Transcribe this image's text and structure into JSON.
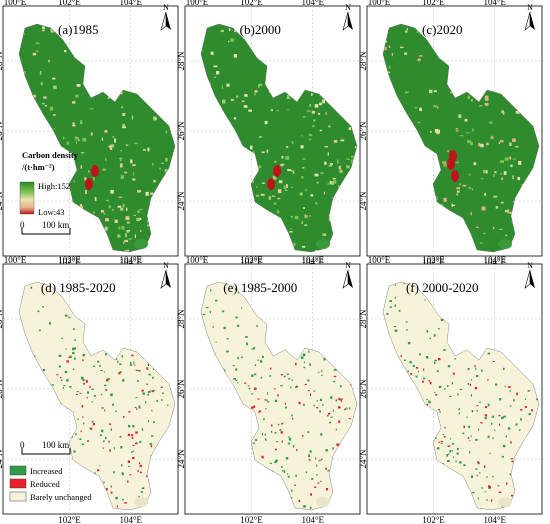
{
  "figure": {
    "panels": [
      {
        "id": "a",
        "title": "(a)1985",
        "kind": "density",
        "seed": 11
      },
      {
        "id": "b",
        "title": "(b)2000",
        "kind": "density",
        "seed": 23
      },
      {
        "id": "c",
        "title": "(c)2020",
        "kind": "density",
        "seed": 37
      },
      {
        "id": "d",
        "title": "(d)  1985-2020",
        "kind": "change",
        "seed": 41
      },
      {
        "id": "e",
        "title": "(e)  1985-2000",
        "kind": "change",
        "seed": 53
      },
      {
        "id": "f",
        "title": "(f)  2000-2020",
        "kind": "change",
        "seed": 67
      }
    ],
    "longitude_ticks_top": [
      "100°E",
      "102°E",
      "104°E"
    ],
    "longitude_ticks_bottom": [
      "102°E",
      "104°E"
    ],
    "latitude_ticks": [
      "28°N",
      "26°N",
      "24°N"
    ],
    "north_arrow_label": "N",
    "density_legend": {
      "title_line1": "Carbon density",
      "title_line2": "/(t·hm⁻²)",
      "high_label": "High:152",
      "low_label": "Low:43",
      "high": 152,
      "low": 43,
      "colors": [
        "#1f8a1f",
        "#7dc14f",
        "#e7e3b0",
        "#e8b08a",
        "#c0141b"
      ]
    },
    "scale_bar": {
      "label_zero": "0",
      "label_distance": "100 km"
    },
    "change_legend": {
      "items": [
        {
          "label": "Increased",
          "color": "#2e9a4a"
        },
        {
          "label": "Reduced",
          "color": "#e8202a"
        },
        {
          "label": "Barely unchanged",
          "color": "#f6f3da"
        }
      ]
    }
  }
}
